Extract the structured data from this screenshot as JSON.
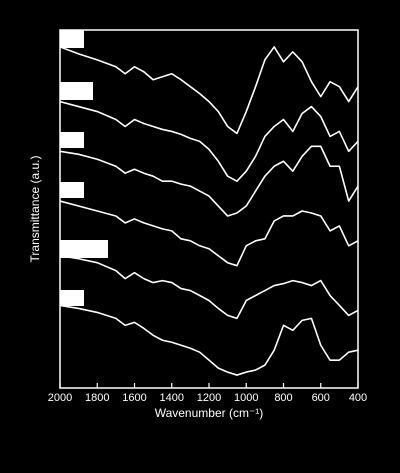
{
  "chart_data": {
    "type": "line",
    "x_label": "Wavenumber (cm⁻¹)",
    "y_label": "Transmittance (a.u.)",
    "x": [
      2000,
      1900,
      1800,
      1700,
      1650,
      1600,
      1550,
      1500,
      1450,
      1400,
      1350,
      1300,
      1250,
      1200,
      1150,
      1100,
      1050,
      1000,
      950,
      900,
      850,
      800,
      750,
      700,
      650,
      600,
      550,
      500,
      450,
      400
    ],
    "xlim": [
      2000,
      400
    ],
    "xticks": [
      2000,
      1800,
      1600,
      1400,
      1200,
      1000,
      800,
      600,
      400
    ],
    "ylim": [
      0,
      36
    ],
    "series": [
      {
        "color": "#ffffff",
        "values": [
          34.3,
          33.6,
          33.0,
          32.3,
          31.6,
          32.3,
          31.8,
          31.0,
          31.3,
          31.6,
          31.0,
          30.3,
          29.6,
          28.8,
          27.8,
          26.3,
          25.6,
          27.8,
          30.3,
          33.0,
          34.3,
          32.8,
          33.8,
          32.8,
          30.8,
          29.3,
          30.8,
          30.3,
          28.8,
          30.3
        ]
      },
      {
        "color": "#ffffff",
        "values": [
          28.8,
          28.3,
          27.8,
          27.0,
          26.3,
          27.0,
          26.6,
          26.3,
          26.0,
          25.8,
          25.5,
          25.1,
          24.8,
          24.0,
          22.8,
          21.3,
          20.8,
          21.8,
          23.3,
          25.3,
          26.3,
          27.0,
          25.8,
          27.6,
          28.3,
          27.3,
          25.3,
          25.8,
          23.8,
          24.8
        ]
      },
      {
        "color": "#ffffff",
        "values": [
          23.8,
          23.5,
          23.0,
          22.3,
          21.6,
          22.0,
          21.6,
          21.3,
          20.8,
          20.8,
          20.5,
          20.3,
          19.8,
          19.3,
          18.3,
          17.3,
          17.6,
          18.3,
          19.8,
          21.3,
          22.3,
          22.8,
          21.8,
          23.3,
          24.3,
          24.3,
          22.3,
          22.3,
          18.8,
          20.3
        ]
      },
      {
        "color": "#ffffff",
        "values": [
          18.8,
          18.3,
          17.8,
          17.3,
          16.6,
          17.0,
          16.6,
          16.3,
          16.0,
          15.8,
          15.0,
          14.8,
          14.3,
          14.0,
          13.3,
          12.6,
          12.3,
          14.3,
          14.8,
          15.0,
          16.8,
          17.3,
          17.3,
          17.8,
          17.6,
          17.3,
          15.8,
          16.3,
          14.3,
          14.8
        ]
      },
      {
        "color": "#ffffff",
        "values": [
          13.3,
          13.0,
          12.6,
          11.8,
          11.0,
          11.6,
          11.0,
          10.6,
          10.8,
          10.6,
          10.0,
          9.8,
          9.3,
          8.8,
          8.0,
          7.3,
          7.0,
          8.8,
          9.3,
          9.8,
          10.3,
          10.5,
          10.8,
          10.6,
          10.3,
          10.8,
          9.3,
          8.3,
          7.3,
          7.8
        ]
      },
      {
        "color": "#ffffff",
        "values": [
          8.3,
          8.0,
          7.6,
          7.0,
          6.3,
          6.6,
          6.0,
          5.3,
          4.8,
          4.6,
          4.3,
          4.0,
          3.6,
          2.8,
          2.0,
          1.6,
          1.3,
          1.6,
          1.8,
          2.3,
          3.8,
          6.3,
          5.8,
          6.8,
          7.0,
          4.3,
          2.8,
          2.8,
          3.6,
          3.8
        ]
      }
    ]
  }
}
